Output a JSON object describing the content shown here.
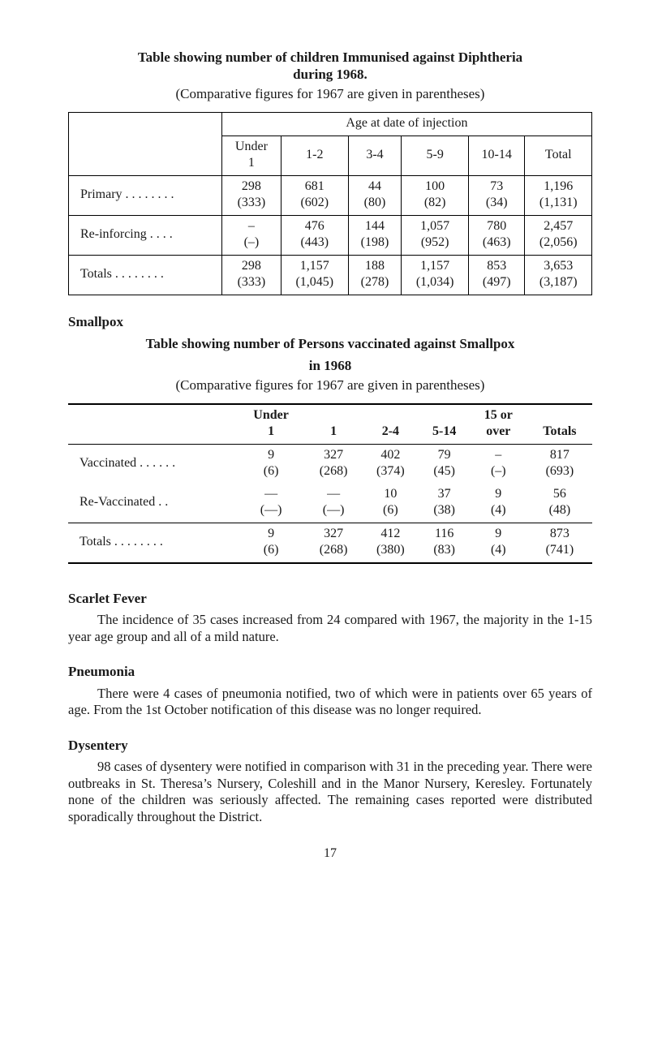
{
  "table1": {
    "title_line1": "Table showing number of children Immunised against Diphtheria",
    "title_line2": "during 1968.",
    "subtitle": "(Comparative figures for 1967 are given in parentheses)",
    "super_header": "Age at date of injection",
    "col_headers": {
      "stub_top": "Under",
      "stub_bot": "1",
      "c1": "1-2",
      "c2": "3-4",
      "c3": "5-9",
      "c4": "10-14",
      "c5": "Total"
    },
    "rows": [
      {
        "label": "Primary  . . . . . . . .",
        "under1": "298",
        "under1_p": "(333)",
        "c1": "681",
        "c1_p": "(602)",
        "c2": "44",
        "c2_p": "(80)",
        "c3": "100",
        "c3_p": "(82)",
        "c4": "73",
        "c4_p": "(34)",
        "c5": "1,196",
        "c5_p": "(1,131)"
      },
      {
        "label": "Re-inforcing  . . . .",
        "under1": "–",
        "under1_p": "(–)",
        "c1": "476",
        "c1_p": "(443)",
        "c2": "144",
        "c2_p": "(198)",
        "c3": "1,057",
        "c3_p": "(952)",
        "c4": "780",
        "c4_p": "(463)",
        "c5": "2,457",
        "c5_p": "(2,056)"
      },
      {
        "label": "Totals . . . . . . . .",
        "under1": "298",
        "under1_p": "(333)",
        "c1": "1,157",
        "c1_p": "(1,045)",
        "c2": "188",
        "c2_p": "(278)",
        "c3": "1,157",
        "c3_p": "(1,034)",
        "c4": "853",
        "c4_p": "(497)",
        "c5": "3,653",
        "c5_p": "(3,187)"
      }
    ]
  },
  "smallpox_heading": "Smallpox",
  "table2": {
    "title_line1": "Table showing number of Persons vaccinated against Smallpox",
    "title_line2": "in 1968",
    "subtitle": "(Comparative figures for 1967 are given in parentheses)",
    "col_headers": {
      "stub_top": "Under",
      "stub_bot": "1",
      "c1": "1",
      "c2": "2-4",
      "c3": "5-14",
      "c4_top": "15 or",
      "c4_bot": "over",
      "c5": "Totals"
    },
    "rows": [
      {
        "label": "Vaccinated . . . . . .",
        "under1": "9",
        "under1_p": "(6)",
        "c1": "327",
        "c1_p": "(268)",
        "c2": "402",
        "c2_p": "(374)",
        "c3": "79",
        "c3_p": "(45)",
        "c4": "–",
        "c4_p": "(–)",
        "c5": "817",
        "c5_p": "(693)"
      },
      {
        "label": "Re-Vaccinated  . .",
        "under1": "—",
        "under1_p": "(—)",
        "c1": "—",
        "c1_p": "(—)",
        "c2": "10",
        "c2_p": "(6)",
        "c3": "37",
        "c3_p": "(38)",
        "c4": "9",
        "c4_p": "(4)",
        "c5": "56",
        "c5_p": "(48)"
      },
      {
        "label": "Totals . . . . . . . .",
        "under1": "9",
        "under1_p": "(6)",
        "c1": "327",
        "c1_p": "(268)",
        "c2": "412",
        "c2_p": "(380)",
        "c3": "116",
        "c3_p": "(83)",
        "c4": "9",
        "c4_p": "(4)",
        "c5": "873",
        "c5_p": "(741)"
      }
    ]
  },
  "scarlet": {
    "heading": "Scarlet Fever",
    "body": "The incidence of 35 cases increased from 24 compared with 1967, the majority in the 1-15 year age group and all of a mild nature."
  },
  "pneumonia": {
    "heading": "Pneumonia",
    "body": "There were 4 cases of pneumonia notified, two of  which were in patients over 65 years of age.  From the 1st October notification of this disease was no longer required."
  },
  "dysentery": {
    "heading": "Dysentery",
    "body": "98 cases of dysentery were notified in comparison with 31 in the preceding year.  There were outbreaks in St. Theresa’s Nursery, Coleshill and in the Manor Nursery, Keresley. Fortunately none of the children was seriously affected.  The remaining cases reported were distributed sporadically throughout the District."
  },
  "page_number": "17"
}
